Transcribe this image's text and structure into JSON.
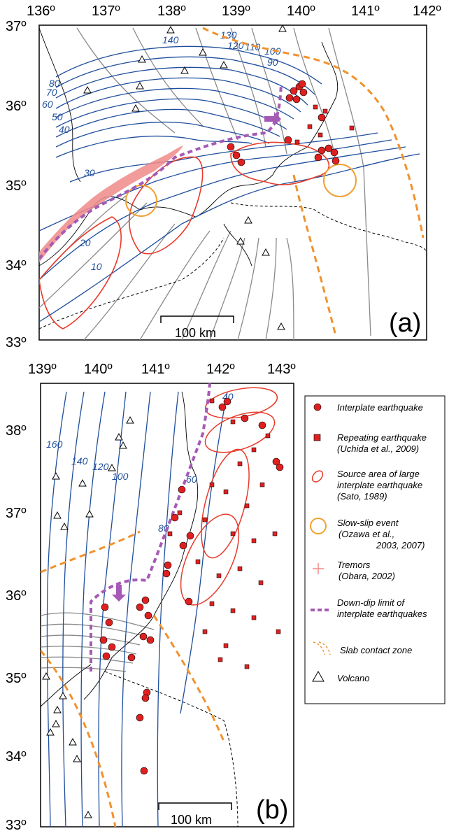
{
  "panel_a": {
    "lon_ticks": [
      "136º",
      "137º",
      "138º",
      "139º",
      "140º",
      "141º",
      "142º"
    ],
    "lat_ticks": [
      "37º",
      "36º",
      "35º",
      "34º",
      "33º"
    ],
    "depth_labels": [
      "140",
      "130",
      "120",
      "110",
      "100",
      "90",
      "80",
      "70",
      "60",
      "50",
      "40",
      "30",
      "20",
      "10"
    ],
    "scale_label": "100 km",
    "panel_label": "(a)"
  },
  "panel_b": {
    "lon_ticks": [
      "139º",
      "140º",
      "141º",
      "142º",
      "143º"
    ],
    "lat_ticks": [
      "38º",
      "37º",
      "36º",
      "35º",
      "34º",
      "33º"
    ],
    "depth_labels": [
      "160",
      "140",
      "120",
      "100",
      "80",
      "60",
      "40"
    ],
    "scale_label": "100 km",
    "panel_label": "(b)"
  },
  "legend": {
    "interplate": "Interplate earthquake",
    "repeating_1": "Repeating earthquake",
    "repeating_2": "(Uchida et al., 2009)",
    "source_1": "Source area of large",
    "source_2": "interplate earthquake",
    "source_3": "(Sato, 1989)",
    "slow_1": "Slow-slip event",
    "slow_2": "(Ozawa et al.,",
    "slow_3": "2003, 2007)",
    "tremor_1": "Tremors",
    "tremor_2": "(Obara, 2002)",
    "downdip_1": "Down-dip limit of",
    "downdip_2": "interplate earthquakes",
    "slab": "Slab contact zone",
    "volcano": "Volcano"
  },
  "colors": {
    "depth_contour": "#1f4e9c",
    "interplate_eq": "#e02020",
    "source_area": "#e83a2a",
    "slow_slip": "#f0a030",
    "tremor": "#f08a8a",
    "downdip": "#a55ab5",
    "slab_contact": "#f0922e",
    "grid_gray": "#8a8a8a"
  },
  "icons": {
    "interplate": "filled-circle-icon",
    "repeating": "filled-square-icon",
    "source": "open-ellipse-icon",
    "slow_slip": "open-circle-icon",
    "tremor": "plus-icon",
    "volcano": "triangle-icon"
  }
}
